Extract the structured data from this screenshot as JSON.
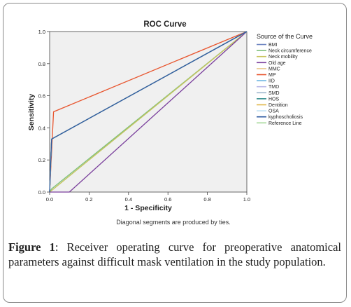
{
  "chart_data": {
    "type": "line",
    "title": "ROC Curve",
    "xlabel": "1 - Specificity",
    "ylabel": "Sensitivity",
    "xlim": [
      0,
      1
    ],
    "ylim": [
      0,
      1
    ],
    "xticks": [
      "0.0",
      "0.2",
      "0.4",
      "0.6",
      "0.8",
      "1.0"
    ],
    "yticks": [
      "0.0",
      "0.2",
      "0.4",
      "0.6",
      "0.8",
      "1.0"
    ],
    "grid": false,
    "legend_title": "Source of the Curve",
    "legend_position": "right",
    "note": "Diagonal segments are produced by ties.",
    "series": [
      {
        "name": "BMI",
        "color": "#6f86c2",
        "x": [
          0,
          0.01,
          1
        ],
        "y": [
          0,
          0.33,
          1
        ]
      },
      {
        "name": "Neck circumference",
        "color": "#7cbf7a",
        "x": [
          0,
          0.01,
          1
        ],
        "y": [
          0,
          0.02,
          1
        ]
      },
      {
        "name": "Neck mobility",
        "color": "#c8c45e",
        "x": [
          0,
          0.01,
          1
        ],
        "y": [
          0,
          0.01,
          1
        ]
      },
      {
        "name": "Old age",
        "color": "#7a3f9c",
        "x": [
          0,
          0.1,
          1
        ],
        "y": [
          0,
          0.0,
          1
        ]
      },
      {
        "name": "MMC",
        "color": "#e8c98e",
        "x": [
          0,
          0.01,
          1
        ],
        "y": [
          0,
          0.33,
          1
        ]
      },
      {
        "name": "MP",
        "color": "#e8552e",
        "x": [
          0,
          0.02,
          1
        ],
        "y": [
          0,
          0.5,
          1
        ]
      },
      {
        "name": "IID",
        "color": "#6ab4e0",
        "x": [
          0,
          0.01,
          1
        ],
        "y": [
          0,
          0.33,
          1
        ]
      },
      {
        "name": "TMD",
        "color": "#b8b8e8",
        "x": [
          0,
          0.01,
          1
        ],
        "y": [
          0,
          0.33,
          1
        ]
      },
      {
        "name": "SMD",
        "color": "#9eb6cc",
        "x": [
          0,
          0.01,
          1
        ],
        "y": [
          0,
          0.33,
          1
        ]
      },
      {
        "name": "HOS",
        "color": "#2f8a8a",
        "x": [
          0,
          0.01,
          1
        ],
        "y": [
          0,
          0.33,
          1
        ]
      },
      {
        "name": "Dentition",
        "color": "#e2b74a",
        "x": [
          0,
          0.01,
          1
        ],
        "y": [
          0,
          0.33,
          1
        ]
      },
      {
        "name": "OSA",
        "color": "#bfe0f2",
        "x": [
          0,
          0.01,
          1
        ],
        "y": [
          0,
          0.33,
          1
        ]
      },
      {
        "name": "kyphoscholiosis",
        "color": "#2c5aa0",
        "x": [
          0,
          0.01,
          1
        ],
        "y": [
          0,
          0.33,
          1
        ]
      },
      {
        "name": "Reference Line",
        "color": "#a6d89a",
        "x": [
          0,
          1
        ],
        "y": [
          0,
          1
        ]
      }
    ]
  },
  "caption": {
    "label": "Figure 1",
    "text": ": Receiver operating curve for preoperative anatomical parameters against difficult mask ventilation in the study population."
  }
}
